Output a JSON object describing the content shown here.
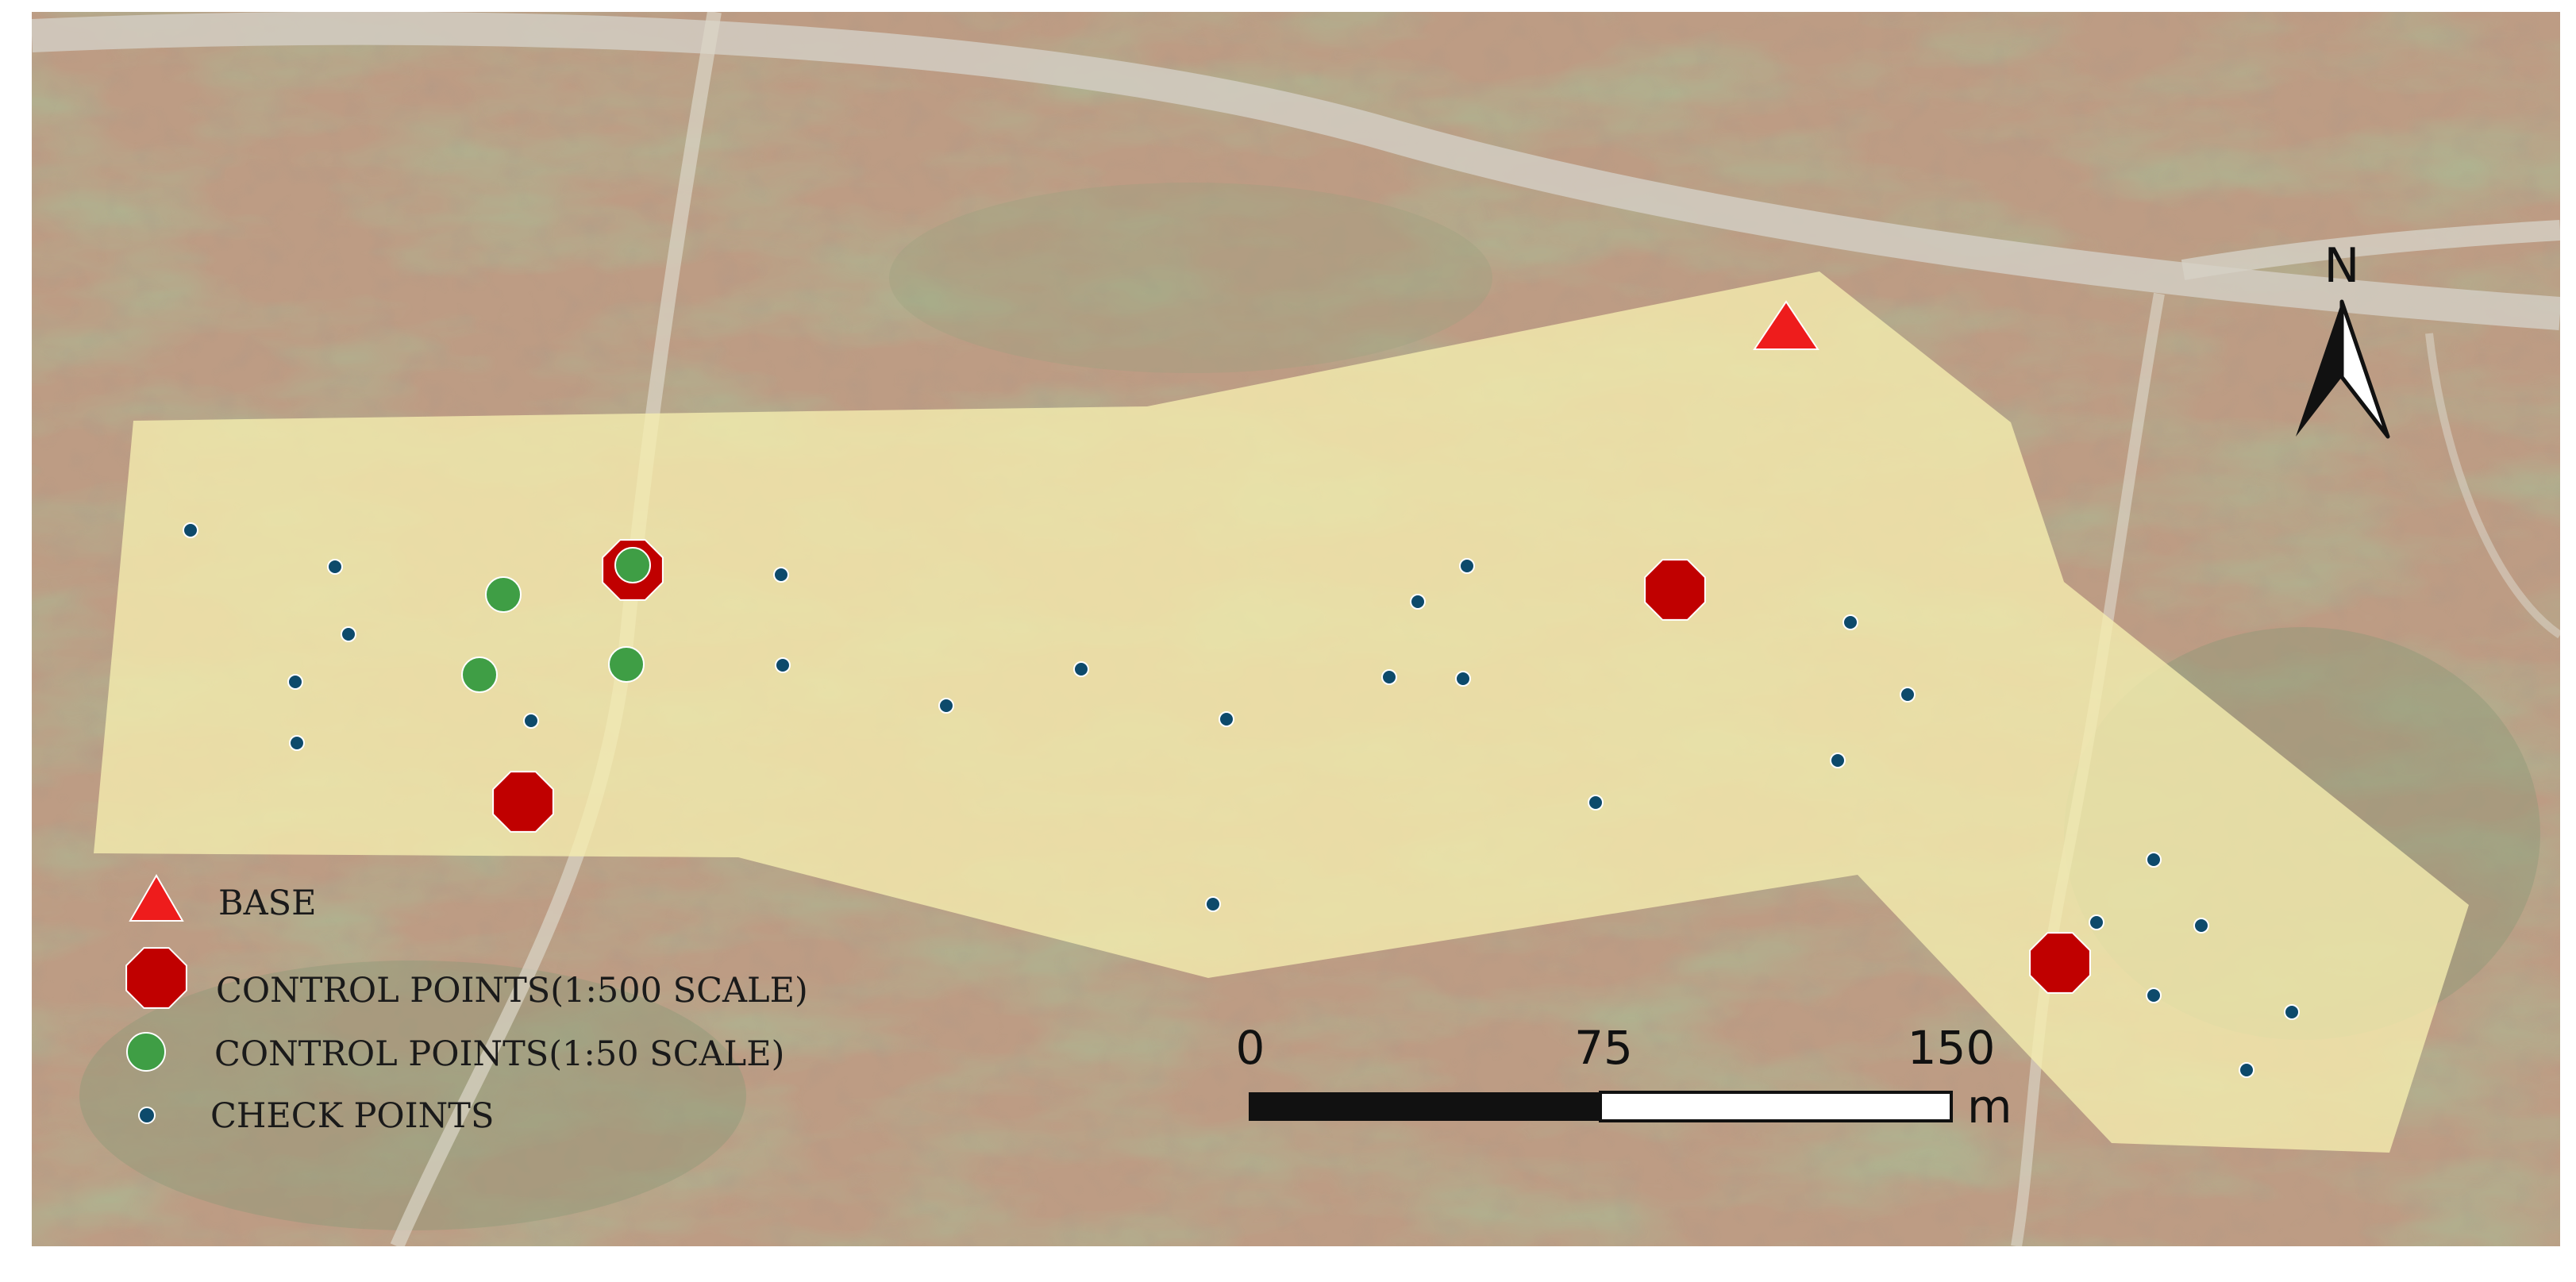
{
  "legend": {
    "items": [
      {
        "key": "base",
        "label": "BASE",
        "symbol": "red-triangle-icon"
      },
      {
        "key": "cp500",
        "label": "CONTROL POINTS(1:500 SCALE)",
        "symbol": "red-octagon-icon"
      },
      {
        "key": "cp50",
        "label": "CONTROL POINTS(1:50 SCALE)",
        "symbol": "green-circle-icon"
      },
      {
        "key": "check",
        "label": "CHECK POINTS",
        "symbol": "blue-dot-icon"
      }
    ]
  },
  "scale_bar": {
    "ticks": [
      "0",
      "75",
      "150"
    ],
    "unit": "m"
  },
  "north_arrow": {
    "label": "N"
  },
  "colors": {
    "base": "#ee1c1c",
    "control_500": "#c00000",
    "control_50": "#3f9e45",
    "check": "#0d4a6b",
    "study_area": "#f6eeb0"
  }
}
